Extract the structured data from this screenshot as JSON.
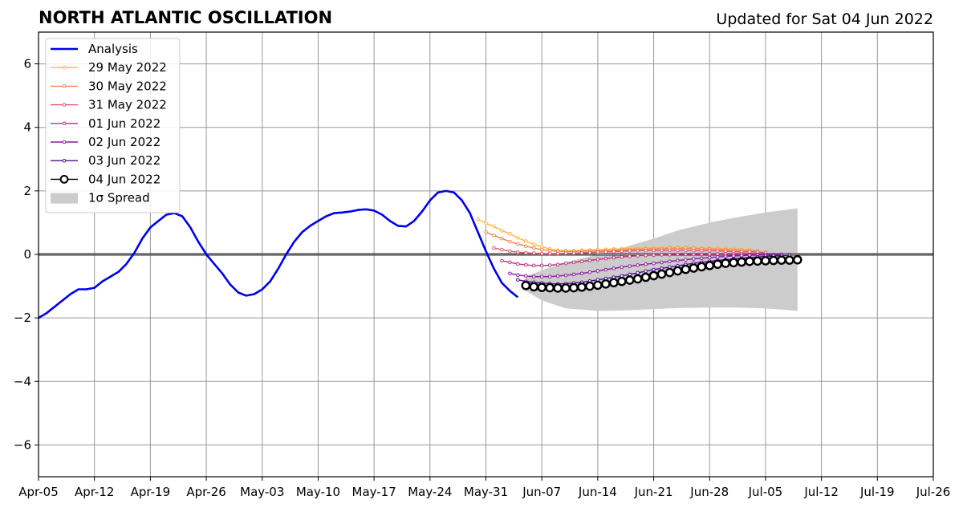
{
  "chart_data": {
    "type": "line",
    "title": "NORTH ATLANTIC OSCILLATION",
    "subtitle": "Updated for Sat 04 Jun 2022",
    "xlabel": "",
    "ylabel": "",
    "xlim": [
      "2022-04-05",
      "2022-07-26"
    ],
    "ylim": [
      -7,
      7
    ],
    "grid": true,
    "legend_position": "top-left",
    "x_ticks": [
      "Apr-05",
      "Apr-12",
      "Apr-19",
      "Apr-26",
      "May-03",
      "May-10",
      "May-17",
      "May-24",
      "May-31",
      "Jun-07",
      "Jun-14",
      "Jun-21",
      "Jun-28",
      "Jul-05",
      "Jul-12",
      "Jul-19",
      "Jul-26"
    ],
    "y_ticks": [
      6,
      4,
      2,
      0,
      -2,
      -4,
      -6
    ],
    "y_tick_labels": [
      "6",
      "4",
      "2",
      "0",
      "−2",
      "−4",
      "−6"
    ],
    "analysis": {
      "name": "Analysis",
      "color": "#0000ee",
      "start": "2022-04-05",
      "values": [
        -2.0,
        -1.85,
        -1.65,
        -1.45,
        -1.25,
        -1.1,
        -1.1,
        -1.05,
        -0.85,
        -0.7,
        -0.55,
        -0.3,
        0.05,
        0.5,
        0.85,
        1.05,
        1.25,
        1.3,
        1.2,
        0.85,
        0.4,
        0.0,
        -0.3,
        -0.6,
        -0.95,
        -1.2,
        -1.3,
        -1.25,
        -1.1,
        -0.85,
        -0.45,
        0.0,
        0.4,
        0.7,
        0.9,
        1.05,
        1.2,
        1.3,
        1.32,
        1.35,
        1.4,
        1.42,
        1.38,
        1.25,
        1.05,
        0.9,
        0.88,
        1.05,
        1.35,
        1.7,
        1.95,
        2.0,
        1.95,
        1.7,
        1.3,
        0.7,
        0.1,
        -0.45,
        -0.9,
        -1.15,
        -1.35
      ]
    },
    "forecasts": [
      {
        "name": "29 May 2022",
        "color": "#fdb63a",
        "start": "2022-05-30",
        "values": [
          1.1,
          0.98,
          0.88,
          0.75,
          0.65,
          0.52,
          0.42,
          0.32,
          0.24,
          0.17,
          0.13,
          0.12,
          0.12,
          0.13,
          0.14,
          0.15,
          0.16,
          0.17,
          0.18,
          0.19,
          0.2,
          0.2,
          0.21,
          0.22,
          0.22,
          0.22,
          0.22,
          0.21,
          0.2,
          0.2,
          0.19,
          0.18,
          0.17,
          0.16,
          0.15
        ]
      },
      {
        "name": "30 May 2022",
        "color": "#f48550",
        "start": "2022-05-31",
        "values": [
          0.7,
          0.6,
          0.5,
          0.4,
          0.33,
          0.26,
          0.2,
          0.15,
          0.12,
          0.1,
          0.09,
          0.09,
          0.1,
          0.1,
          0.11,
          0.12,
          0.13,
          0.14,
          0.15,
          0.16,
          0.17,
          0.18,
          0.18,
          0.19,
          0.19,
          0.19,
          0.19,
          0.18,
          0.17,
          0.16,
          0.15,
          0.14,
          0.13,
          0.12,
          0.11
        ]
      },
      {
        "name": "31 May 2022",
        "color": "#e0566c",
        "start": "2022-06-01",
        "values": [
          0.2,
          0.15,
          0.1,
          0.07,
          0.05,
          0.04,
          0.03,
          0.03,
          0.03,
          0.04,
          0.04,
          0.05,
          0.06,
          0.07,
          0.08,
          0.09,
          0.1,
          0.11,
          0.12,
          0.12,
          0.13,
          0.13,
          0.13,
          0.13,
          0.13,
          0.12,
          0.12,
          0.12,
          0.11,
          0.1,
          0.09,
          0.08,
          0.08,
          0.07,
          0.06
        ]
      },
      {
        "name": "01 Jun 2022",
        "color": "#b8337d",
        "start": "2022-06-02",
        "values": [
          -0.2,
          -0.25,
          -0.3,
          -0.33,
          -0.35,
          -0.35,
          -0.34,
          -0.32,
          -0.28,
          -0.25,
          -0.22,
          -0.19,
          -0.16,
          -0.13,
          -0.1,
          -0.08,
          -0.06,
          -0.04,
          -0.03,
          -0.02,
          -0.01,
          -0.01,
          0.0,
          0.0,
          0.0,
          0.0,
          0.01,
          0.01,
          0.01,
          0.01,
          0.01,
          0.0,
          0.0,
          0.0,
          0.0
        ]
      },
      {
        "name": "02 Jun 2022",
        "color": "#8a1ba0",
        "start": "2022-06-03",
        "values": [
          -0.6,
          -0.65,
          -0.68,
          -0.7,
          -0.7,
          -0.7,
          -0.68,
          -0.66,
          -0.63,
          -0.6,
          -0.56,
          -0.52,
          -0.48,
          -0.44,
          -0.4,
          -0.37,
          -0.34,
          -0.31,
          -0.28,
          -0.25,
          -0.22,
          -0.19,
          -0.17,
          -0.14,
          -0.12,
          -0.1,
          -0.08,
          -0.06,
          -0.05,
          -0.04,
          -0.03,
          -0.02,
          -0.01,
          -0.01,
          0.0
        ]
      },
      {
        "name": "03 Jun 2022",
        "color": "#4b0c8e",
        "start": "2022-06-04",
        "values": [
          -0.8,
          -0.85,
          -0.88,
          -0.9,
          -0.92,
          -0.93,
          -0.92,
          -0.9,
          -0.88,
          -0.84,
          -0.8,
          -0.76,
          -0.72,
          -0.68,
          -0.63,
          -0.58,
          -0.53,
          -0.48,
          -0.44,
          -0.4,
          -0.36,
          -0.32,
          -0.28,
          -0.25,
          -0.22,
          -0.19,
          -0.17,
          -0.14,
          -0.12,
          -0.1,
          -0.08,
          -0.06,
          -0.05,
          -0.04,
          -0.03
        ]
      },
      {
        "name": "04 Jun 2022",
        "color": "#000000",
        "start": "2022-06-05",
        "values": [
          -0.98,
          -1.02,
          -1.04,
          -1.05,
          -1.06,
          -1.06,
          -1.05,
          -1.03,
          -1.0,
          -0.97,
          -0.93,
          -0.89,
          -0.85,
          -0.81,
          -0.77,
          -0.72,
          -0.67,
          -0.62,
          -0.57,
          -0.52,
          -0.47,
          -0.43,
          -0.39,
          -0.35,
          -0.31,
          -0.28,
          -0.26,
          -0.24,
          -0.22,
          -0.21,
          -0.2,
          -0.19,
          -0.18,
          -0.18,
          -0.17
        ]
      }
    ],
    "spread": {
      "name": "1σ Spread",
      "color": "#cccccc",
      "dates": [
        "2022-06-05",
        "2022-06-07",
        "2022-06-10",
        "2022-06-14",
        "2022-06-17",
        "2022-06-21",
        "2022-06-24",
        "2022-06-28",
        "2022-07-01",
        "2022-07-05",
        "2022-07-09"
      ],
      "upper": [
        -0.7,
        -0.5,
        -0.25,
        0.0,
        0.2,
        0.5,
        0.75,
        1.0,
        1.15,
        1.32,
        1.45
      ],
      "lower": [
        -1.15,
        -1.45,
        -1.7,
        -1.78,
        -1.77,
        -1.72,
        -1.69,
        -1.67,
        -1.67,
        -1.7,
        -1.78
      ]
    },
    "legend": [
      "Analysis",
      "29 May 2022",
      "30 May 2022",
      "31 May 2022",
      "01 Jun 2022",
      "02 Jun 2022",
      "03 Jun 2022",
      "04 Jun 2022",
      "1σ Spread"
    ]
  }
}
